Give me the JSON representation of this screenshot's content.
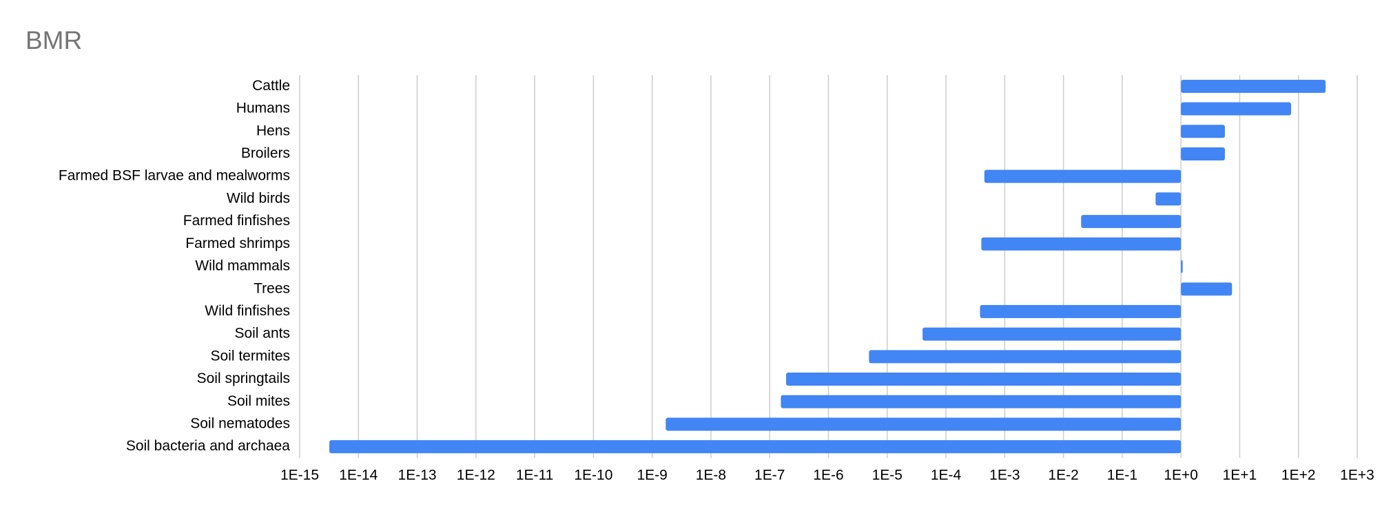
{
  "chart_data": {
    "type": "bar",
    "orientation": "horizontal",
    "title": "BMR",
    "categories": [
      "Cattle",
      "Humans",
      "Hens",
      "Broilers",
      "Farmed BSF larvae and mealworms",
      "Wild birds",
      "Farmed finfishes",
      "Farmed shrimps",
      "Wild mammals",
      "Trees",
      "Wild finfishes",
      "Soil ants",
      "Soil termites",
      "Soil springtails",
      "Soil mites",
      "Soil nematodes",
      "Soil bacteria and archaea"
    ],
    "values": [
      290,
      75,
      5.6,
      5.6,
      0.00045,
      0.37,
      0.02,
      0.0004,
      1.07,
      7.4,
      0.00038,
      4e-05,
      4.9e-06,
      1.9e-07,
      1.55e-07,
      1.7e-09,
      3.2e-15
    ],
    "color": "#4285f4",
    "x_log_scale": true,
    "grid": true,
    "xlim": [
      1e-15,
      1000
    ],
    "xticks": [
      {
        "value": 1e-15,
        "label": "1E-15"
      },
      {
        "value": 1e-14,
        "label": "1E-14"
      },
      {
        "value": 1e-13,
        "label": "1E-13"
      },
      {
        "value": 1e-12,
        "label": "1E-12"
      },
      {
        "value": 1e-11,
        "label": "1E-11"
      },
      {
        "value": 1e-10,
        "label": "1E-10"
      },
      {
        "value": 1e-09,
        "label": "1E-9"
      },
      {
        "value": 1e-08,
        "label": "1E-8"
      },
      {
        "value": 1e-07,
        "label": "1E-7"
      },
      {
        "value": 1e-06,
        "label": "1E-6"
      },
      {
        "value": 1e-05,
        "label": "1E-5"
      },
      {
        "value": 0.0001,
        "label": "1E-4"
      },
      {
        "value": 0.001,
        "label": "1E-3"
      },
      {
        "value": 0.01,
        "label": "1E-2"
      },
      {
        "value": 0.1,
        "label": "1E-1"
      },
      {
        "value": 1,
        "label": "1E+0"
      },
      {
        "value": 10,
        "label": "1E+1"
      },
      {
        "value": 100,
        "label": "1E+2"
      },
      {
        "value": 1000,
        "label": "1E+3"
      }
    ]
  }
}
